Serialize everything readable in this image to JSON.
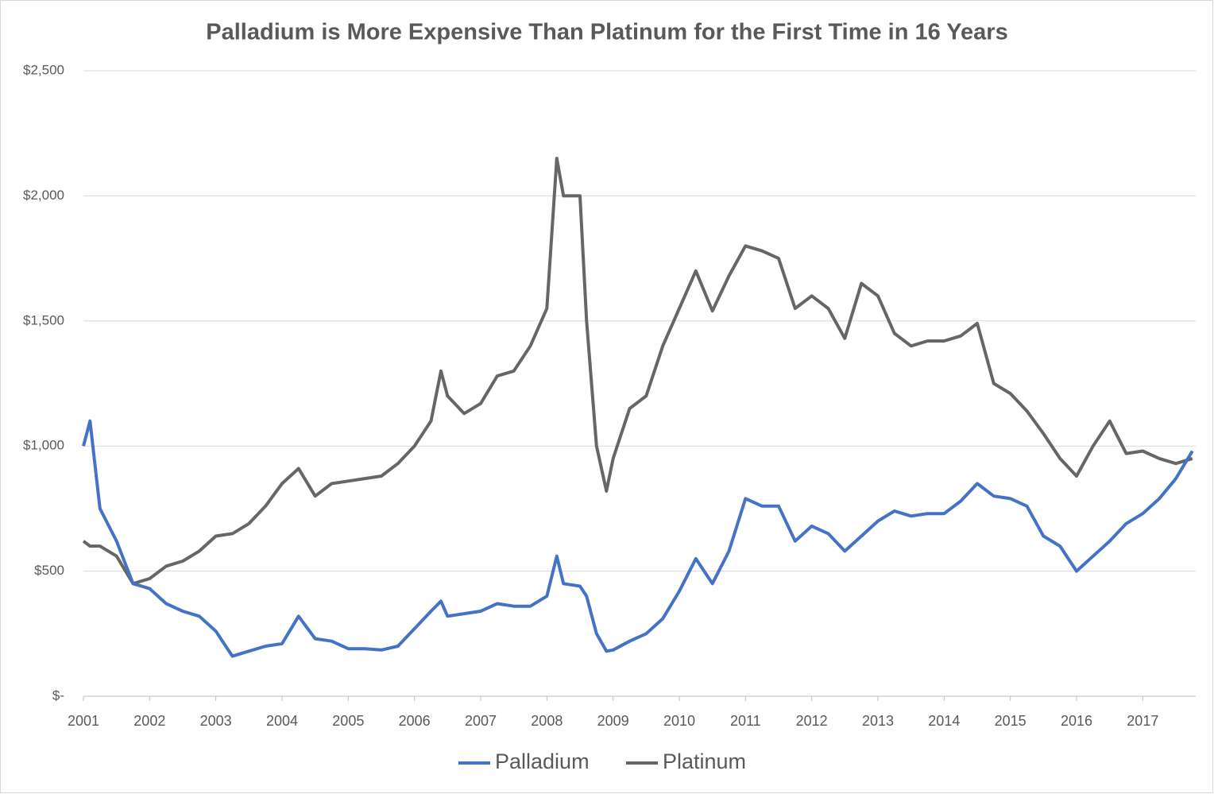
{
  "chart_data": {
    "type": "line",
    "title": "Palladium is More Expensive Than Platinum for the First Time in 16 Years",
    "x": [
      2001,
      2001.1,
      2001.25,
      2001.5,
      2001.75,
      2002,
      2002.25,
      2002.5,
      2002.75,
      2003,
      2003.25,
      2003.5,
      2003.75,
      2004,
      2004.25,
      2004.5,
      2004.75,
      2005,
      2005.25,
      2005.5,
      2005.75,
      2006,
      2006.25,
      2006.4,
      2006.5,
      2006.75,
      2007,
      2007.25,
      2007.5,
      2007.75,
      2008,
      2008.15,
      2008.25,
      2008.5,
      2008.6,
      2008.75,
      2008.9,
      2009,
      2009.25,
      2009.5,
      2009.75,
      2010,
      2010.25,
      2010.5,
      2010.75,
      2011,
      2011.25,
      2011.5,
      2011.75,
      2012,
      2012.25,
      2012.5,
      2012.75,
      2013,
      2013.25,
      2013.5,
      2013.75,
      2014,
      2014.25,
      2014.5,
      2014.75,
      2015,
      2015.25,
      2015.5,
      2015.75,
      2016,
      2016.25,
      2016.5,
      2016.75,
      2017,
      2017.25,
      2017.5,
      2017.75
    ],
    "series": [
      {
        "name": "Palladium",
        "color": "#4472c4",
        "values": [
          1000,
          1100,
          750,
          620,
          450,
          430,
          370,
          340,
          320,
          260,
          160,
          180,
          200,
          210,
          320,
          230,
          220,
          190,
          190,
          185,
          200,
          270,
          340,
          380,
          320,
          330,
          340,
          370,
          360,
          360,
          400,
          560,
          450,
          440,
          400,
          250,
          180,
          185,
          220,
          250,
          310,
          420,
          550,
          450,
          580,
          790,
          760,
          760,
          620,
          680,
          650,
          580,
          640,
          700,
          740,
          720,
          730,
          730,
          780,
          850,
          800,
          790,
          760,
          640,
          600,
          500,
          560,
          620,
          690,
          730,
          790,
          870,
          980
        ]
      },
      {
        "name": "Platinum",
        "color": "#666666",
        "values": [
          620,
          600,
          600,
          560,
          450,
          470,
          520,
          540,
          580,
          640,
          650,
          690,
          760,
          850,
          910,
          800,
          850,
          860,
          870,
          880,
          930,
          1000,
          1100,
          1300,
          1200,
          1130,
          1170,
          1280,
          1300,
          1400,
          1550,
          2150,
          2000,
          2000,
          1500,
          1000,
          820,
          950,
          1150,
          1200,
          1400,
          1550,
          1700,
          1540,
          1680,
          1800,
          1780,
          1750,
          1550,
          1600,
          1550,
          1430,
          1650,
          1600,
          1450,
          1400,
          1420,
          1420,
          1440,
          1490,
          1250,
          1210,
          1140,
          1050,
          950,
          880,
          1000,
          1100,
          970,
          980,
          950,
          930,
          950
        ]
      }
    ],
    "xlim": [
      2001,
      2017.8
    ],
    "xticks": [
      2001,
      2002,
      2003,
      2004,
      2005,
      2006,
      2007,
      2008,
      2009,
      2010,
      2011,
      2012,
      2013,
      2014,
      2015,
      2016,
      2017
    ],
    "ylim": [
      0,
      2500
    ],
    "yticks": [
      {
        "value": 0,
        "label": "$-"
      },
      {
        "value": 500,
        "label": "$500"
      },
      {
        "value": 1000,
        "label": "$1,000"
      },
      {
        "value": 1500,
        "label": "$1,500"
      },
      {
        "value": 2000,
        "label": "$2,000"
      },
      {
        "value": 2500,
        "label": "$2,500"
      }
    ],
    "grid": true,
    "legend": "bottom"
  }
}
